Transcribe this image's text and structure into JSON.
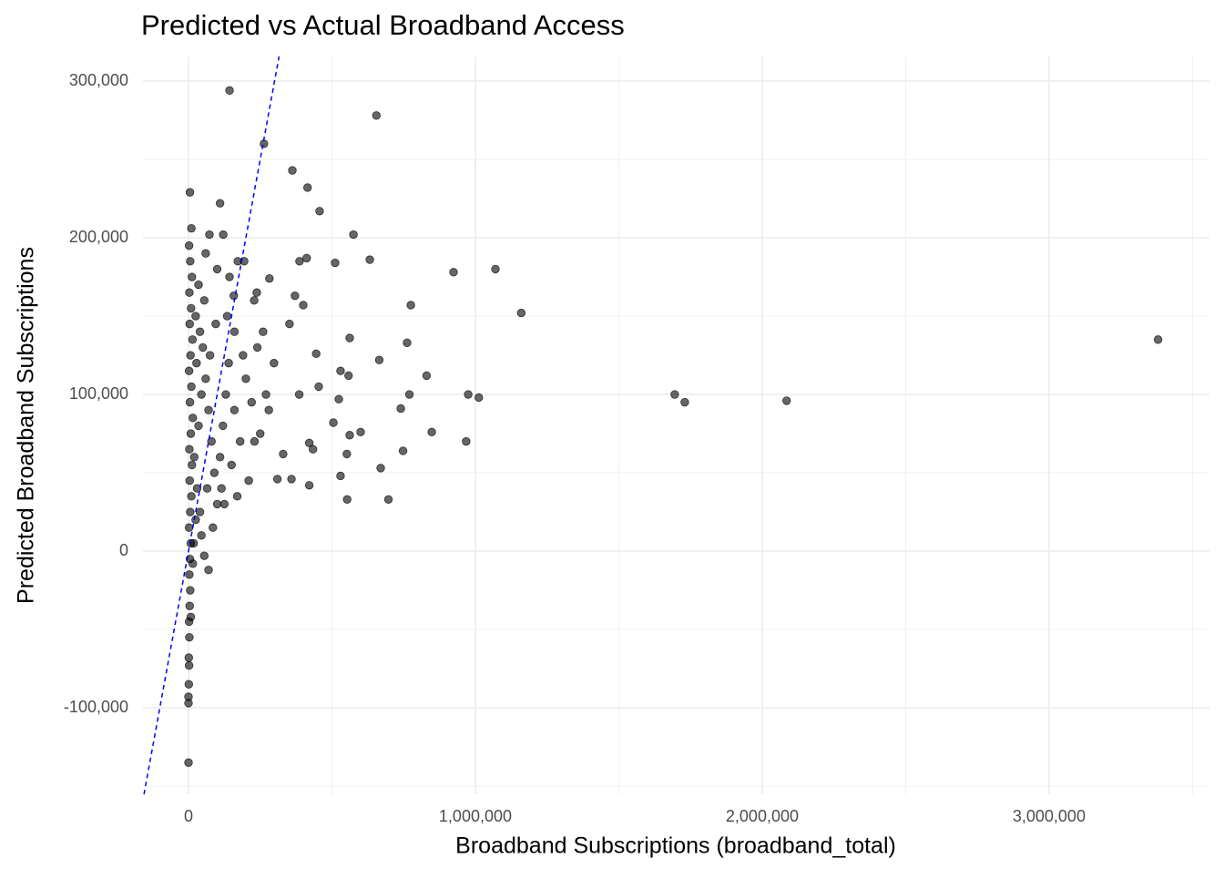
{
  "chart_data": {
    "type": "scatter",
    "title": "Predicted vs Actual Broadband Access",
    "x_label": "Broadband Subscriptions (broadband_total)",
    "y_label": "Predicted Broadband Subscriptions",
    "xlim": [
      -158700,
      3559000
    ],
    "ylim": [
      -155200,
      315700
    ],
    "xticks": [
      0,
      {
        "value": 1000000,
        "label": "1,000,000"
      },
      {
        "value": 2000000,
        "label": "2,000,000"
      },
      {
        "value": 3000000,
        "label": "3,000,000"
      }
    ],
    "yticks": [
      {
        "value": -100000,
        "label": "-100,000"
      },
      0,
      {
        "value": 100000,
        "label": "100,000"
      },
      {
        "value": 200000,
        "label": "200,000"
      },
      {
        "value": 300000,
        "label": "300,000"
      }
    ],
    "grid": true,
    "minor_grid": true,
    "color": "#000000",
    "reference_line": {
      "slope": 1,
      "intercept": 0,
      "color": "#0000ff",
      "dashed": true
    },
    "x": [
      143000,
      655000,
      263000,
      362000,
      415000,
      457000,
      5000,
      110000,
      575000,
      632000,
      511000,
      412000,
      387000,
      924000,
      1070000,
      1160000,
      775000,
      3380000,
      1695000,
      1730000,
      2085000,
      975000,
      1012000,
      968000,
      830000,
      762000,
      562000,
      530000,
      558000,
      665000,
      770000,
      740000,
      848000,
      748000,
      600000,
      562000,
      552000,
      670000,
      530000,
      553000,
      697000,
      505000,
      524000,
      454000,
      445000,
      386000,
      421000,
      434000,
      421000,
      359000,
      310000,
      330000,
      298000,
      352000,
      371000,
      400000,
      282000,
      238000,
      229000,
      194000,
      73000,
      121000,
      172000,
      143000,
      158000,
      0,
      0,
      0,
      2000,
      1000,
      70000,
      3000,
      2000,
      4000,
      6000,
      3000,
      5000,
      8000,
      2000,
      6000,
      10000,
      4000,
      12000,
      3000,
      8000,
      15000,
      5000,
      10000,
      2000,
      7000,
      14000,
      4000,
      9000,
      3000,
      12000,
      6000,
      2000,
      10000,
      25000,
      30000,
      20000,
      35000,
      45000,
      28000,
      40000,
      55000,
      50000,
      60000,
      70000,
      80000,
      90000,
      100000,
      65000,
      110000,
      120000,
      130000,
      140000,
      150000,
      160000,
      180000,
      200000,
      210000,
      220000,
      250000,
      260000,
      270000,
      240000,
      190000,
      170000,
      85000,
      45000,
      18000,
      25000,
      35000,
      75000,
      95000,
      115000,
      125000,
      135000,
      100000,
      60000,
      230000,
      280000,
      160000,
      55000,
      40000,
      15000,
      8000,
      1000
    ],
    "y": [
      294000,
      278000,
      260000,
      243000,
      232000,
      217000,
      229000,
      222000,
      202000,
      186000,
      184000,
      187000,
      185000,
      178000,
      180000,
      152000,
      157000,
      135000,
      100000,
      95000,
      96000,
      100000,
      98000,
      70000,
      112000,
      133000,
      136000,
      115000,
      112000,
      122000,
      100000,
      91000,
      76000,
      64000,
      76000,
      74000,
      62000,
      53000,
      48000,
      33000,
      33000,
      82000,
      97000,
      105000,
      126000,
      100000,
      69000,
      65000,
      42000,
      46000,
      46000,
      62000,
      120000,
      145000,
      163000,
      157000,
      174000,
      165000,
      160000,
      185000,
      202000,
      202000,
      185000,
      175000,
      163000,
      -135000,
      -97000,
      -93000,
      -73000,
      -68000,
      -12000,
      -55000,
      -45000,
      -35000,
      -25000,
      -15000,
      -5000,
      5000,
      15000,
      25000,
      35000,
      45000,
      55000,
      65000,
      75000,
      85000,
      95000,
      105000,
      115000,
      125000,
      135000,
      145000,
      155000,
      165000,
      175000,
      185000,
      195000,
      206000,
      20000,
      40000,
      60000,
      80000,
      100000,
      120000,
      140000,
      160000,
      130000,
      110000,
      90000,
      70000,
      50000,
      30000,
      40000,
      60000,
      80000,
      100000,
      120000,
      55000,
      90000,
      70000,
      110000,
      45000,
      95000,
      75000,
      140000,
      100000,
      130000,
      125000,
      35000,
      15000,
      10000,
      5000,
      150000,
      170000,
      125000,
      145000,
      40000,
      30000,
      150000,
      180000,
      190000,
      70000,
      90000,
      140000,
      -3000,
      25000,
      -8000,
      -42000,
      -85000
    ]
  }
}
